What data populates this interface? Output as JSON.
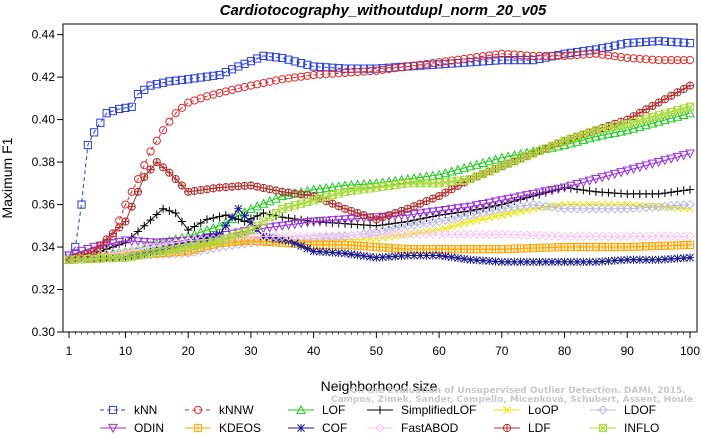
{
  "chart_data": {
    "type": "line",
    "title": "Cardiotocography_withoutdupl_norm_20_v05",
    "xlabel": "Neighborhood size",
    "ylabel": "Maximum F1",
    "xlim": [
      1,
      100
    ],
    "ylim": [
      0.3,
      0.445
    ],
    "x_ticks": [
      1,
      10,
      20,
      30,
      40,
      50,
      60,
      70,
      80,
      90,
      100
    ],
    "y_ticks": [
      0.3,
      0.32,
      0.34,
      0.36,
      0.38,
      0.4,
      0.42,
      0.44
    ],
    "y_tick_labels": [
      "0.30",
      "0.32",
      "0.34",
      "0.36",
      "0.38",
      "0.40",
      "0.42",
      "0.44"
    ],
    "grid": false,
    "legend_position": "bottom",
    "watermark_lines": [
      "Campos, Zimek, Sander, Campello, Micenková, Schubert, Assent, Houle",
      "On the Evaluation of Unsupervised Outlier Detection. DAMI, 2015."
    ],
    "series": [
      {
        "name": "kNN",
        "color": "#2a3fd8",
        "marker": "square",
        "dashed": true,
        "points": [
          [
            1,
            0.336
          ],
          [
            2,
            0.34
          ],
          [
            3,
            0.36
          ],
          [
            4,
            0.388
          ],
          [
            5,
            0.394
          ],
          [
            7,
            0.403
          ],
          [
            9,
            0.405
          ],
          [
            11,
            0.406
          ],
          [
            12,
            0.412
          ],
          [
            14,
            0.416
          ],
          [
            17,
            0.418
          ],
          [
            20,
            0.419
          ],
          [
            25,
            0.421
          ],
          [
            28,
            0.425
          ],
          [
            32,
            0.43
          ],
          [
            35,
            0.429
          ],
          [
            40,
            0.425
          ],
          [
            45,
            0.424
          ],
          [
            50,
            0.424
          ],
          [
            55,
            0.425
          ],
          [
            60,
            0.426
          ],
          [
            65,
            0.427
          ],
          [
            70,
            0.428
          ],
          [
            75,
            0.428
          ],
          [
            80,
            0.431
          ],
          [
            85,
            0.433
          ],
          [
            90,
            0.436
          ],
          [
            95,
            0.437
          ],
          [
            100,
            0.436
          ]
        ]
      },
      {
        "name": "kNNW",
        "color": "#e02b2b",
        "marker": "circle",
        "dashed": true,
        "points": [
          [
            1,
            0.334
          ],
          [
            5,
            0.336
          ],
          [
            8,
            0.345
          ],
          [
            10,
            0.36
          ],
          [
            12,
            0.372
          ],
          [
            14,
            0.385
          ],
          [
            16,
            0.395
          ],
          [
            18,
            0.403
          ],
          [
            20,
            0.408
          ],
          [
            23,
            0.411
          ],
          [
            27,
            0.414
          ],
          [
            30,
            0.416
          ],
          [
            35,
            0.419
          ],
          [
            40,
            0.421
          ],
          [
            45,
            0.422
          ],
          [
            50,
            0.423
          ],
          [
            55,
            0.425
          ],
          [
            60,
            0.427
          ],
          [
            65,
            0.429
          ],
          [
            70,
            0.431
          ],
          [
            75,
            0.43
          ],
          [
            80,
            0.43
          ],
          [
            85,
            0.431
          ],
          [
            90,
            0.429
          ],
          [
            95,
            0.428
          ],
          [
            100,
            0.428
          ]
        ]
      },
      {
        "name": "LOF",
        "color": "#22c922",
        "marker": "triangle-up",
        "dashed": false,
        "points": [
          [
            1,
            0.334
          ],
          [
            10,
            0.338
          ],
          [
            20,
            0.345
          ],
          [
            25,
            0.35
          ],
          [
            30,
            0.358
          ],
          [
            35,
            0.364
          ],
          [
            40,
            0.367
          ],
          [
            45,
            0.369
          ],
          [
            50,
            0.37
          ],
          [
            55,
            0.372
          ],
          [
            60,
            0.374
          ],
          [
            65,
            0.378
          ],
          [
            70,
            0.382
          ],
          [
            75,
            0.385
          ],
          [
            80,
            0.388
          ],
          [
            85,
            0.392
          ],
          [
            90,
            0.395
          ],
          [
            95,
            0.399
          ],
          [
            100,
            0.403
          ]
        ]
      },
      {
        "name": "SimplifiedLOF",
        "color": "#000000",
        "marker": "plus",
        "dashed": false,
        "points": [
          [
            1,
            0.334
          ],
          [
            5,
            0.337
          ],
          [
            10,
            0.342
          ],
          [
            13,
            0.35
          ],
          [
            16,
            0.358
          ],
          [
            18,
            0.356
          ],
          [
            20,
            0.348
          ],
          [
            23,
            0.353
          ],
          [
            26,
            0.355
          ],
          [
            29,
            0.352
          ],
          [
            32,
            0.356
          ],
          [
            35,
            0.354
          ],
          [
            40,
            0.352
          ],
          [
            45,
            0.351
          ],
          [
            50,
            0.35
          ],
          [
            55,
            0.352
          ],
          [
            60,
            0.355
          ],
          [
            65,
            0.357
          ],
          [
            70,
            0.36
          ],
          [
            75,
            0.364
          ],
          [
            80,
            0.368
          ],
          [
            85,
            0.366
          ],
          [
            90,
            0.365
          ],
          [
            95,
            0.365
          ],
          [
            100,
            0.367
          ]
        ]
      },
      {
        "name": "LoOP",
        "color": "#e8e800",
        "marker": "x",
        "dashed": false,
        "points": [
          [
            1,
            0.334
          ],
          [
            10,
            0.336
          ],
          [
            20,
            0.34
          ],
          [
            30,
            0.343
          ],
          [
            40,
            0.343
          ],
          [
            50,
            0.344
          ],
          [
            55,
            0.346
          ],
          [
            60,
            0.348
          ],
          [
            65,
            0.352
          ],
          [
            70,
            0.355
          ],
          [
            75,
            0.358
          ],
          [
            80,
            0.36
          ],
          [
            85,
            0.36
          ],
          [
            90,
            0.36
          ],
          [
            95,
            0.359
          ],
          [
            100,
            0.358
          ]
        ]
      },
      {
        "name": "LDOF",
        "color": "#b8b8e8",
        "marker": "diamond",
        "dashed": false,
        "points": [
          [
            1,
            0.334
          ],
          [
            10,
            0.336
          ],
          [
            20,
            0.337
          ],
          [
            25,
            0.34
          ],
          [
            30,
            0.342
          ],
          [
            35,
            0.343
          ],
          [
            40,
            0.344
          ],
          [
            45,
            0.345
          ],
          [
            50,
            0.347
          ],
          [
            55,
            0.35
          ],
          [
            60,
            0.352
          ],
          [
            65,
            0.355
          ],
          [
            70,
            0.358
          ],
          [
            75,
            0.36
          ],
          [
            80,
            0.358
          ],
          [
            85,
            0.358
          ],
          [
            90,
            0.358
          ],
          [
            95,
            0.359
          ],
          [
            100,
            0.36
          ]
        ]
      },
      {
        "name": "ODIN",
        "color": "#9a30dc",
        "marker": "triangle-down",
        "dashed": false,
        "points": [
          [
            1,
            0.336
          ],
          [
            5,
            0.34
          ],
          [
            10,
            0.343
          ],
          [
            15,
            0.342
          ],
          [
            20,
            0.343
          ],
          [
            25,
            0.345
          ],
          [
            30,
            0.348
          ],
          [
            35,
            0.35
          ],
          [
            40,
            0.352
          ],
          [
            45,
            0.353
          ],
          [
            50,
            0.354
          ],
          [
            55,
            0.355
          ],
          [
            60,
            0.357
          ],
          [
            65,
            0.359
          ],
          [
            70,
            0.362
          ],
          [
            75,
            0.365
          ],
          [
            80,
            0.368
          ],
          [
            85,
            0.372
          ],
          [
            90,
            0.376
          ],
          [
            95,
            0.38
          ],
          [
            100,
            0.384
          ]
        ]
      },
      {
        "name": "KDEOS",
        "color": "#ffa500",
        "marker": "square-cross",
        "dashed": false,
        "points": [
          [
            1,
            0.334
          ],
          [
            10,
            0.336
          ],
          [
            20,
            0.338
          ],
          [
            25,
            0.342
          ],
          [
            30,
            0.343
          ],
          [
            35,
            0.342
          ],
          [
            40,
            0.341
          ],
          [
            45,
            0.341
          ],
          [
            50,
            0.34
          ],
          [
            55,
            0.339
          ],
          [
            60,
            0.339
          ],
          [
            70,
            0.339
          ],
          [
            80,
            0.34
          ],
          [
            90,
            0.34
          ],
          [
            100,
            0.341
          ]
        ]
      },
      {
        "name": "COF",
        "color": "#1a1a8c",
        "marker": "asterisk",
        "dashed": false,
        "points": [
          [
            1,
            0.334
          ],
          [
            10,
            0.335
          ],
          [
            20,
            0.342
          ],
          [
            25,
            0.346
          ],
          [
            28,
            0.358
          ],
          [
            32,
            0.345
          ],
          [
            36,
            0.343
          ],
          [
            40,
            0.338
          ],
          [
            45,
            0.337
          ],
          [
            50,
            0.335
          ],
          [
            55,
            0.336
          ],
          [
            60,
            0.336
          ],
          [
            65,
            0.334
          ],
          [
            70,
            0.333
          ],
          [
            75,
            0.333
          ],
          [
            80,
            0.333
          ],
          [
            85,
            0.333
          ],
          [
            90,
            0.334
          ],
          [
            95,
            0.334
          ],
          [
            100,
            0.335
          ]
        ]
      },
      {
        "name": "FastABOD",
        "color": "#f7c6f0",
        "marker": "diamond",
        "dashed": false,
        "points": [
          [
            1,
            0.334
          ],
          [
            10,
            0.338
          ],
          [
            20,
            0.343
          ],
          [
            30,
            0.345
          ],
          [
            40,
            0.345
          ],
          [
            50,
            0.346
          ],
          [
            60,
            0.346
          ],
          [
            70,
            0.346
          ],
          [
            80,
            0.345
          ],
          [
            90,
            0.345
          ],
          [
            100,
            0.345
          ]
        ]
      },
      {
        "name": "LDF",
        "color": "#b03030",
        "marker": "circle-plus",
        "dashed": false,
        "points": [
          [
            1,
            0.334
          ],
          [
            5,
            0.338
          ],
          [
            10,
            0.352
          ],
          [
            13,
            0.373
          ],
          [
            15,
            0.38
          ],
          [
            17,
            0.375
          ],
          [
            20,
            0.366
          ],
          [
            25,
            0.368
          ],
          [
            30,
            0.369
          ],
          [
            35,
            0.366
          ],
          [
            40,
            0.364
          ],
          [
            45,
            0.358
          ],
          [
            50,
            0.353
          ],
          [
            55,
            0.358
          ],
          [
            60,
            0.364
          ],
          [
            65,
            0.372
          ],
          [
            70,
            0.378
          ],
          [
            75,
            0.384
          ],
          [
            80,
            0.39
          ],
          [
            85,
            0.395
          ],
          [
            90,
            0.4
          ],
          [
            95,
            0.408
          ],
          [
            100,
            0.416
          ]
        ]
      },
      {
        "name": "INFLO",
        "color": "#a8d838",
        "marker": "square-x",
        "dashed": false,
        "points": [
          [
            1,
            0.334
          ],
          [
            10,
            0.335
          ],
          [
            20,
            0.34
          ],
          [
            25,
            0.343
          ],
          [
            30,
            0.348
          ],
          [
            35,
            0.358
          ],
          [
            40,
            0.362
          ],
          [
            45,
            0.366
          ],
          [
            50,
            0.368
          ],
          [
            55,
            0.37
          ],
          [
            60,
            0.37
          ],
          [
            65,
            0.372
          ],
          [
            70,
            0.378
          ],
          [
            75,
            0.384
          ],
          [
            80,
            0.39
          ],
          [
            85,
            0.395
          ],
          [
            90,
            0.398
          ],
          [
            95,
            0.402
          ],
          [
            100,
            0.406
          ]
        ]
      }
    ]
  }
}
